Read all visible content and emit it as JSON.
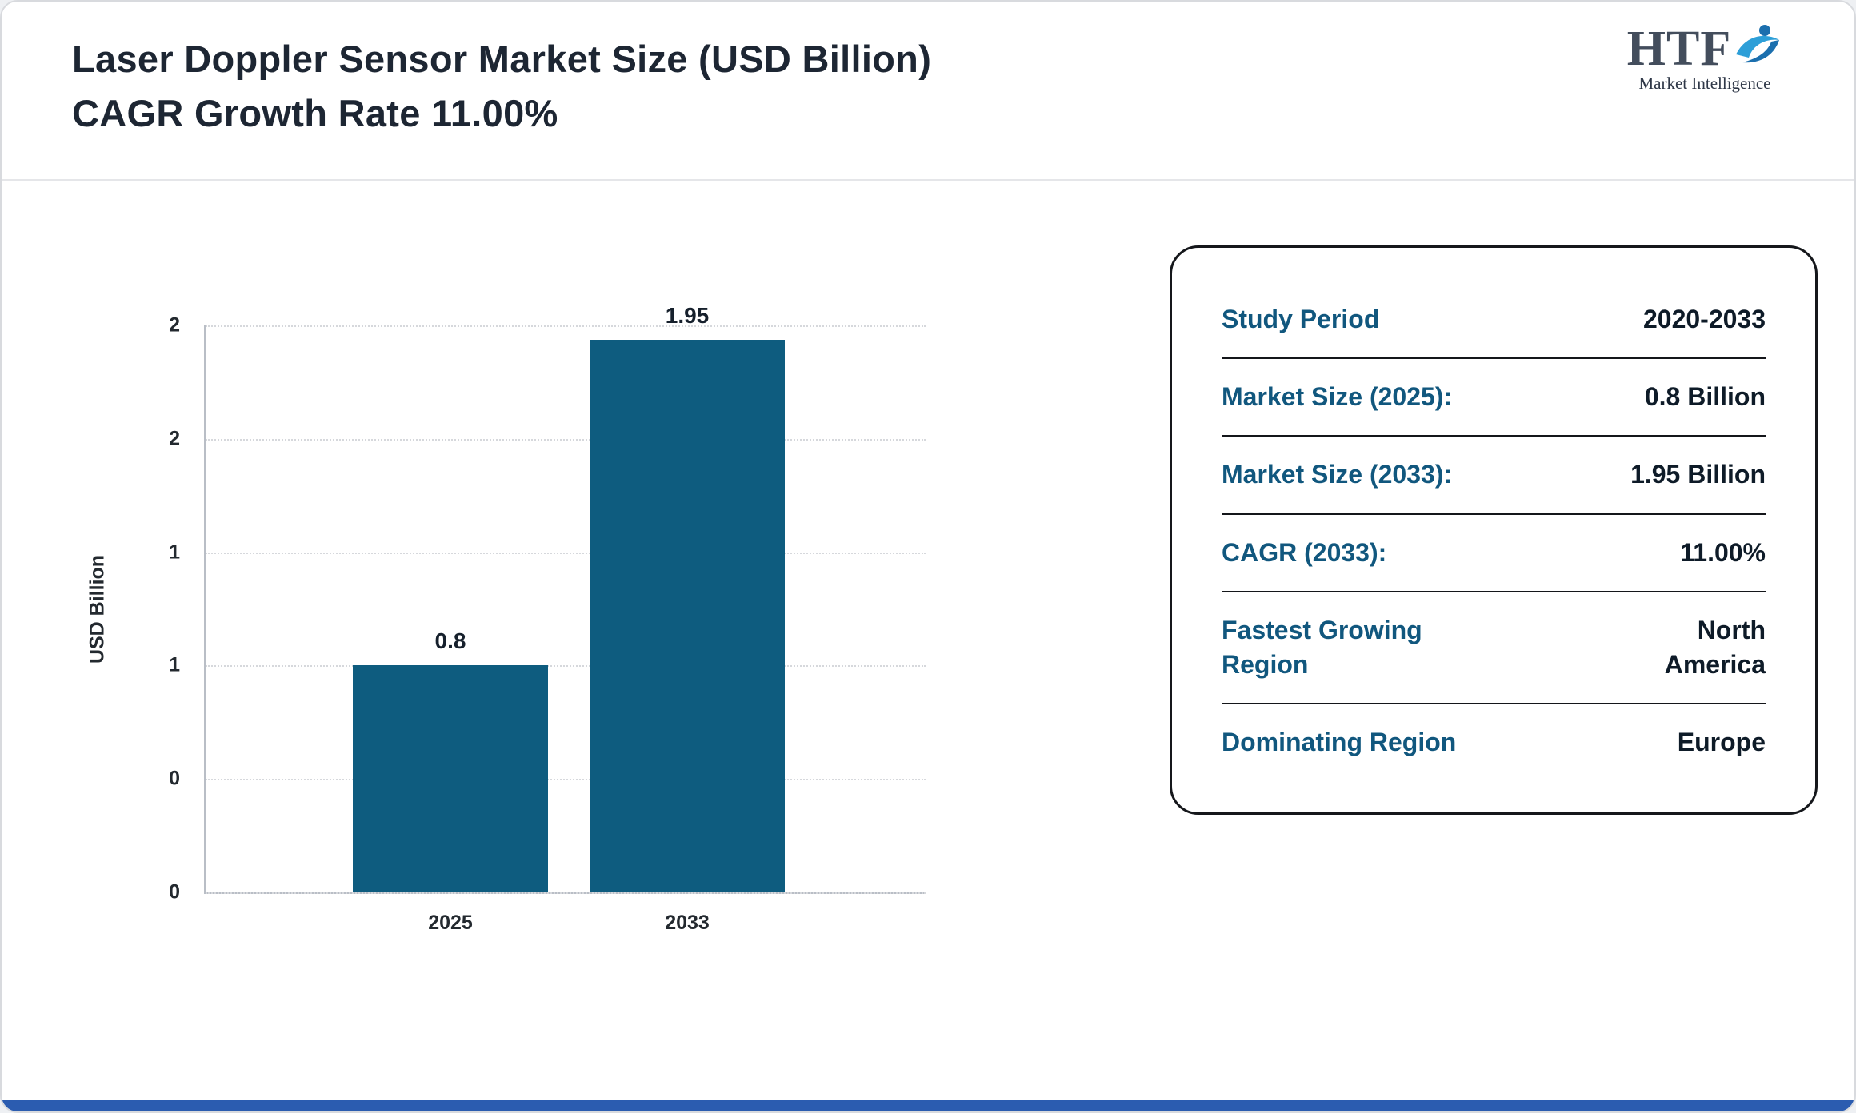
{
  "page": {
    "title_line1": "Laser Doppler Sensor Market Size (USD Billion)",
    "title_line2": "CAGR Growth Rate 11.00%"
  },
  "logo": {
    "text": "HTF",
    "subtext": "Market Intelligence"
  },
  "chart_data": {
    "type": "bar",
    "title": "Laser Doppler Sensor Market Size (USD Billion)",
    "categories": [
      "2025",
      "2033"
    ],
    "values": [
      0.8,
      1.95
    ],
    "bar_labels": [
      "0.8",
      "1.95"
    ],
    "xlabel": "",
    "ylabel": "USD Billion",
    "ylim": [
      0,
      2
    ],
    "ytick_labels_top_to_bottom": [
      "2",
      "2",
      "1",
      "1",
      "0",
      "0"
    ],
    "grid": "horizontal-dotted",
    "legend": "none",
    "bar_color": "#0e5c7f"
  },
  "summary_card": {
    "rows": [
      {
        "label": "Study Period",
        "value": "2020-2033"
      },
      {
        "label": "Market Size (2025):",
        "value": "0.8 Billion"
      },
      {
        "label": "Market Size (2033):",
        "value": "1.95 Billion"
      },
      {
        "label": "CAGR (2033):",
        "value": "11.00%"
      },
      {
        "label": "Fastest Growing\nRegion",
        "value": "North\nAmerica"
      },
      {
        "label": "Dominating Region",
        "value": "Europe"
      }
    ],
    "label_color": "#11577e",
    "value_color": "#0e1b28"
  },
  "footer": {
    "bar_color": "#2b5cb0"
  }
}
